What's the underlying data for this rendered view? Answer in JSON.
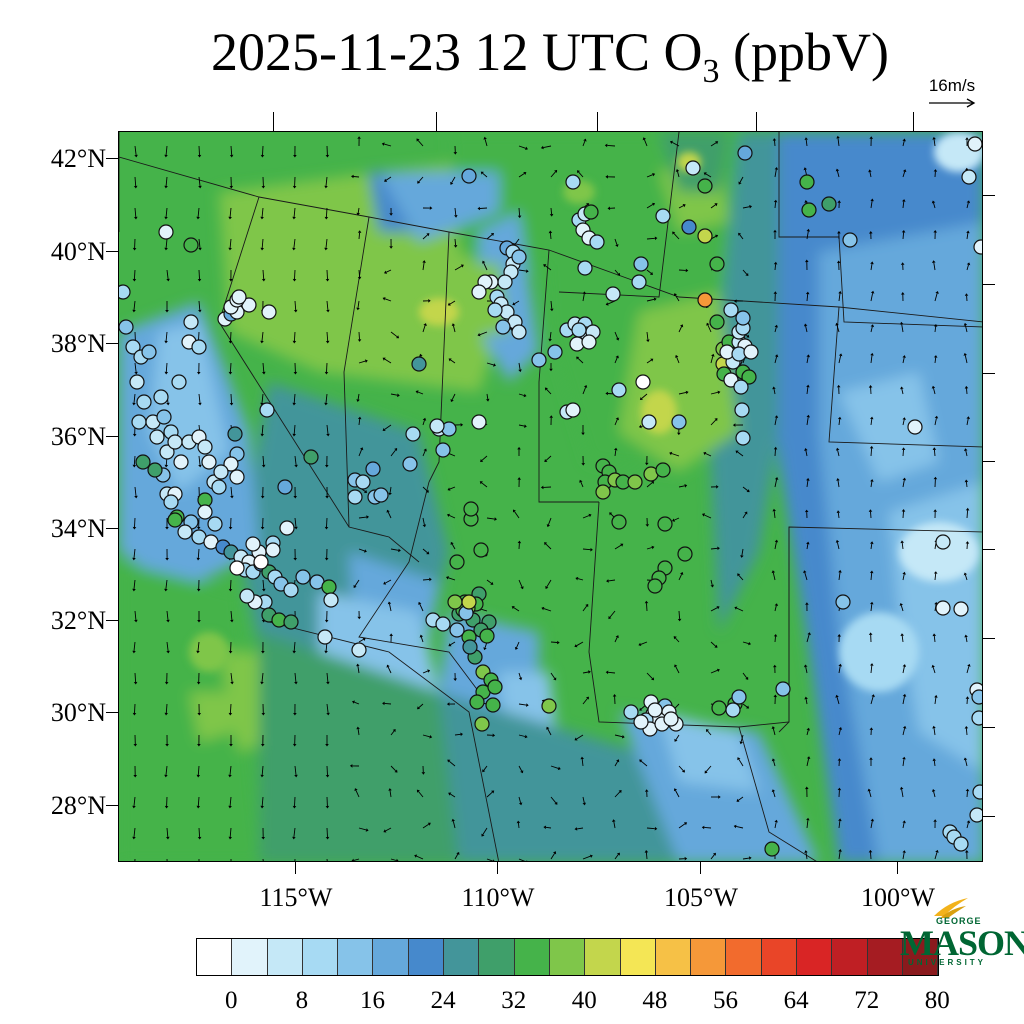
{
  "title": {
    "date": "2025-11-23",
    "hour": "12 UTC",
    "species_main": "O",
    "species_sub": "3",
    "units": "(ppbV)"
  },
  "wind_reference": {
    "label": "16m/s",
    "arrow_icon": "right-arrow-icon"
  },
  "lat_labels": [
    "42°N",
    "40°N",
    "38°N",
    "36°N",
    "34°N",
    "32°N",
    "30°N",
    "28°N"
  ],
  "lon_labels": [
    "115°W",
    "110°W",
    "105°W",
    "100°W"
  ],
  "colorbar": {
    "colors": [
      "#ffffff",
      "#e1f3fb",
      "#c5e8f7",
      "#a7daf3",
      "#86c3e9",
      "#65a8db",
      "#4689cc",
      "#43959a",
      "#3f9f6a",
      "#45b34a",
      "#7fc64a",
      "#c3d64c",
      "#f4e655",
      "#f6c146",
      "#f59839",
      "#f26b2d",
      "#e94528",
      "#d92525",
      "#bf1f24",
      "#a51c22",
      "#8a1a1d"
    ],
    "tick_labels": [
      "0",
      "8",
      "16",
      "24",
      "32",
      "40",
      "48",
      "56",
      "64",
      "72",
      "80"
    ]
  },
  "logo": {
    "line1": "GEORGE",
    "line2": "MASON",
    "line3": "UNIVERSITY"
  }
}
